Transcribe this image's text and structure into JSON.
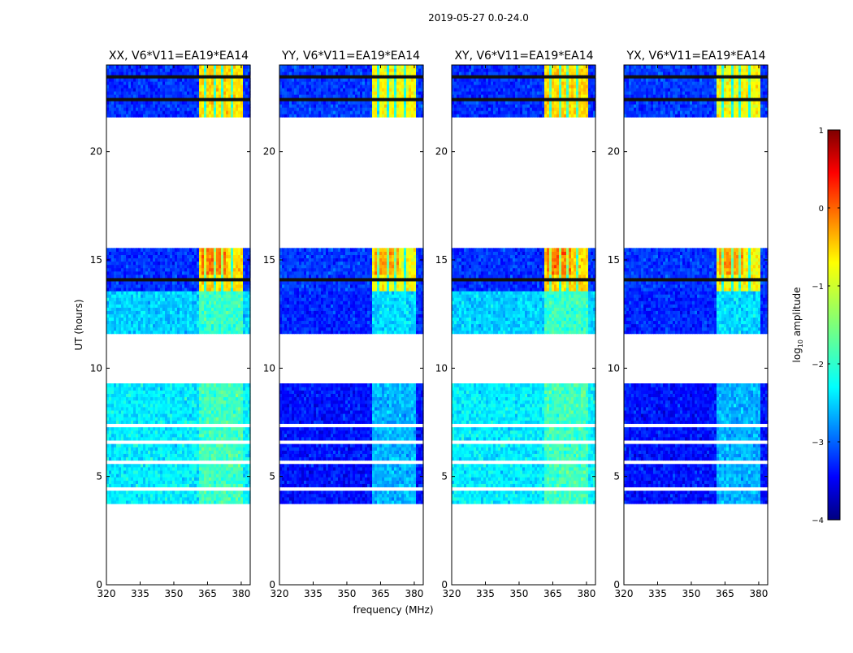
{
  "chart_data": {
    "type": "heatmap",
    "title": "2019-05-27 0.0-24.0",
    "xlabel": "frequency (MHz)",
    "ylabel": "UT (hours)",
    "xlim": [
      320,
      384
    ],
    "ylim": [
      0,
      24
    ],
    "xticks": [
      320,
      335,
      350,
      365,
      380
    ],
    "yticks": [
      0,
      5,
      10,
      15,
      20
    ],
    "panels": [
      {
        "title": "XX, V6*V11=EA19*EA14",
        "style": "xx"
      },
      {
        "title": "YY, V6*V11=EA19*EA14",
        "style": "yy"
      },
      {
        "title": "XY, V6*V11=EA19*EA14",
        "style": "xy"
      },
      {
        "title": "YX, V6*V11=EA19*EA14",
        "style": "yx"
      }
    ],
    "data_segments_ut": [
      [
        3.75,
        9.3
      ],
      [
        11.6,
        15.55
      ],
      [
        21.6,
        24.0
      ]
    ],
    "bright_band_mhz": [
      361,
      381
    ],
    "colorbar": {
      "label": "log10 amplitude",
      "label_main": "log",
      "label_sub": "10",
      "label_tail": " amplitude",
      "range": [
        -4,
        1
      ],
      "ticks": [
        "1",
        "0",
        "−1",
        "−2",
        "−3",
        "−4"
      ],
      "tick_values": [
        1,
        0,
        -1,
        -2,
        -3,
        -4
      ],
      "colormap": "jet"
    }
  }
}
